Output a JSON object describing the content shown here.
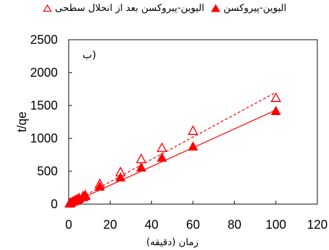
{
  "chart_data": {
    "type": "scatter",
    "legend": {
      "placement": "top-center",
      "items": [
        {
          "label": "الیوین-پیروکسن",
          "marker": "filled-triangle",
          "color": "#ff0000"
        },
        {
          "label": "الیوین-پیروکسن بعد از انحلال سطحی",
          "marker": "open-triangle",
          "color": "#ff0000"
        }
      ]
    },
    "panel_label": "ب)",
    "xlabel": "زمان (دقیقه)",
    "ylabel": "t/qe",
    "xlim": [
      0,
      120
    ],
    "ylim": [
      0,
      2500
    ],
    "xticks": [
      0,
      20,
      40,
      60,
      80,
      100,
      120
    ],
    "yticks": [
      0,
      500,
      1000,
      1500,
      2000,
      2500
    ],
    "grid": false,
    "series": [
      {
        "name": "الیوین-پیروکسن",
        "marker": "filled-triangle",
        "color": "#ff0000",
        "line": "solid",
        "x": [
          0.5,
          1,
          2,
          3,
          4,
          5,
          7,
          8,
          15,
          25,
          35,
          45,
          60,
          100
        ],
        "y": [
          5,
          15,
          30,
          45,
          60,
          75,
          100,
          115,
          260,
          400,
          550,
          700,
          870,
          1410
        ],
        "fit": [
          [
            0,
            0
          ],
          [
            100,
            1430
          ]
        ]
      },
      {
        "name": "الیوین-پیروکسن بعد از انحلال سطحی",
        "marker": "open-triangle",
        "color": "#ff0000",
        "line": "dashed",
        "x": [
          0.5,
          1,
          2,
          3,
          4,
          5,
          7,
          8,
          15,
          25,
          35,
          45,
          60,
          100
        ],
        "y": [
          5,
          18,
          35,
          52,
          68,
          85,
          115,
          130,
          300,
          480,
          680,
          850,
          1110,
          1610
        ],
        "fit": [
          [
            0,
            0
          ],
          [
            100,
            1700
          ]
        ]
      }
    ]
  }
}
